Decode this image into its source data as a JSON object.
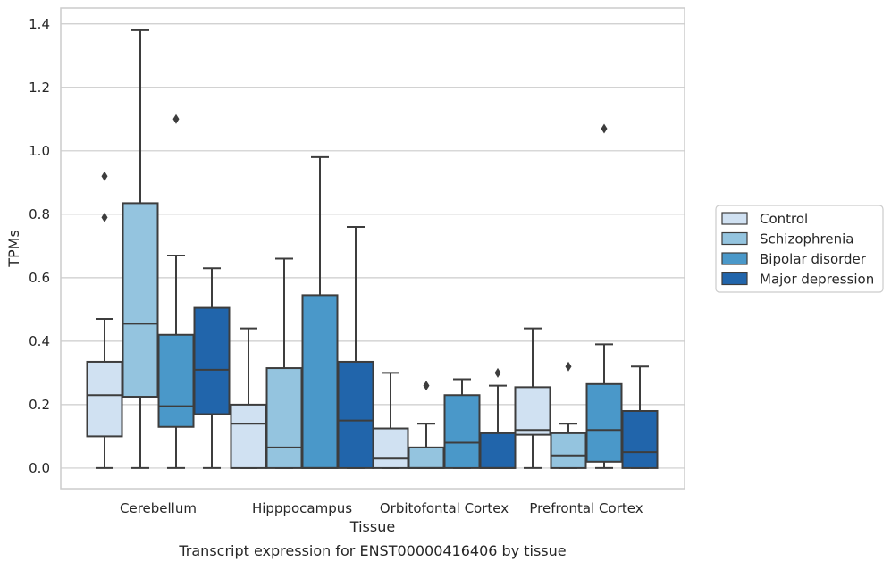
{
  "caption": "Transcript expression for ENST00000416406 by tissue",
  "chart_data": {
    "type": "box",
    "xlabel": "Tissue",
    "ylabel": "TPMs",
    "ylim": [
      -0.065,
      1.45
    ],
    "yticks": [
      0.0,
      0.2,
      0.4,
      0.6,
      0.8,
      1.0,
      1.2,
      1.4
    ],
    "ytick_labels": [
      "0.0",
      "0.2",
      "0.4",
      "0.6",
      "0.8",
      "1.0",
      "1.2",
      "1.4"
    ],
    "grid": "horizontal",
    "legend_position": "right",
    "categories": [
      "Cerebellum",
      "Hipppocampus",
      "Orbitofontal Cortex",
      "Prefrontal Cortex"
    ],
    "series": [
      {
        "name": "Control",
        "color": "#d0e1f2",
        "boxes": [
          {
            "whislo": 0.0,
            "q1": 0.1,
            "med": 0.23,
            "q3": 0.335,
            "whishi": 0.47,
            "fliers": [
              0.79,
              0.92
            ]
          },
          {
            "whislo": 0.0,
            "q1": 0.0,
            "med": 0.14,
            "q3": 0.2,
            "whishi": 0.44,
            "fliers": []
          },
          {
            "whislo": 0.0,
            "q1": 0.0,
            "med": 0.03,
            "q3": 0.125,
            "whishi": 0.3,
            "fliers": []
          },
          {
            "whislo": 0.0,
            "q1": 0.105,
            "med": 0.12,
            "q3": 0.255,
            "whishi": 0.44,
            "fliers": []
          }
        ]
      },
      {
        "name": "Schizophrenia",
        "color": "#94c4df",
        "boxes": [
          {
            "whislo": 0.0,
            "q1": 0.225,
            "med": 0.455,
            "q3": 0.835,
            "whishi": 1.38,
            "fliers": []
          },
          {
            "whislo": 0.0,
            "q1": 0.0,
            "med": 0.065,
            "q3": 0.315,
            "whishi": 0.66,
            "fliers": []
          },
          {
            "whislo": 0.0,
            "q1": 0.0,
            "med": 0.0,
            "q3": 0.065,
            "whishi": 0.14,
            "fliers": [
              0.26
            ]
          },
          {
            "whislo": 0.0,
            "q1": 0.0,
            "med": 0.04,
            "q3": 0.11,
            "whishi": 0.14,
            "fliers": [
              0.32
            ]
          }
        ]
      },
      {
        "name": "Bipolar disorder",
        "color": "#4a98c9",
        "boxes": [
          {
            "whislo": 0.0,
            "q1": 0.13,
            "med": 0.195,
            "q3": 0.42,
            "whishi": 0.67,
            "fliers": [
              1.1
            ]
          },
          {
            "whislo": 0.0,
            "q1": 0.0,
            "med": 0.0,
            "q3": 0.545,
            "whishi": 0.98,
            "fliers": []
          },
          {
            "whislo": 0.0,
            "q1": 0.0,
            "med": 0.08,
            "q3": 0.23,
            "whishi": 0.28,
            "fliers": []
          },
          {
            "whislo": 0.0,
            "q1": 0.02,
            "med": 0.12,
            "q3": 0.265,
            "whishi": 0.39,
            "fliers": [
              1.07
            ]
          }
        ]
      },
      {
        "name": "Major depression",
        "color": "#2165ab",
        "boxes": [
          {
            "whislo": 0.0,
            "q1": 0.17,
            "med": 0.31,
            "q3": 0.505,
            "whishi": 0.63,
            "fliers": []
          },
          {
            "whislo": 0.0,
            "q1": 0.0,
            "med": 0.15,
            "q3": 0.335,
            "whishi": 0.76,
            "fliers": []
          },
          {
            "whislo": 0.0,
            "q1": 0.0,
            "med": 0.0,
            "q3": 0.11,
            "whishi": 0.26,
            "fliers": [
              0.3
            ]
          },
          {
            "whislo": 0.0,
            "q1": 0.0,
            "med": 0.05,
            "q3": 0.18,
            "whishi": 0.32,
            "fliers": []
          }
        ]
      }
    ]
  }
}
